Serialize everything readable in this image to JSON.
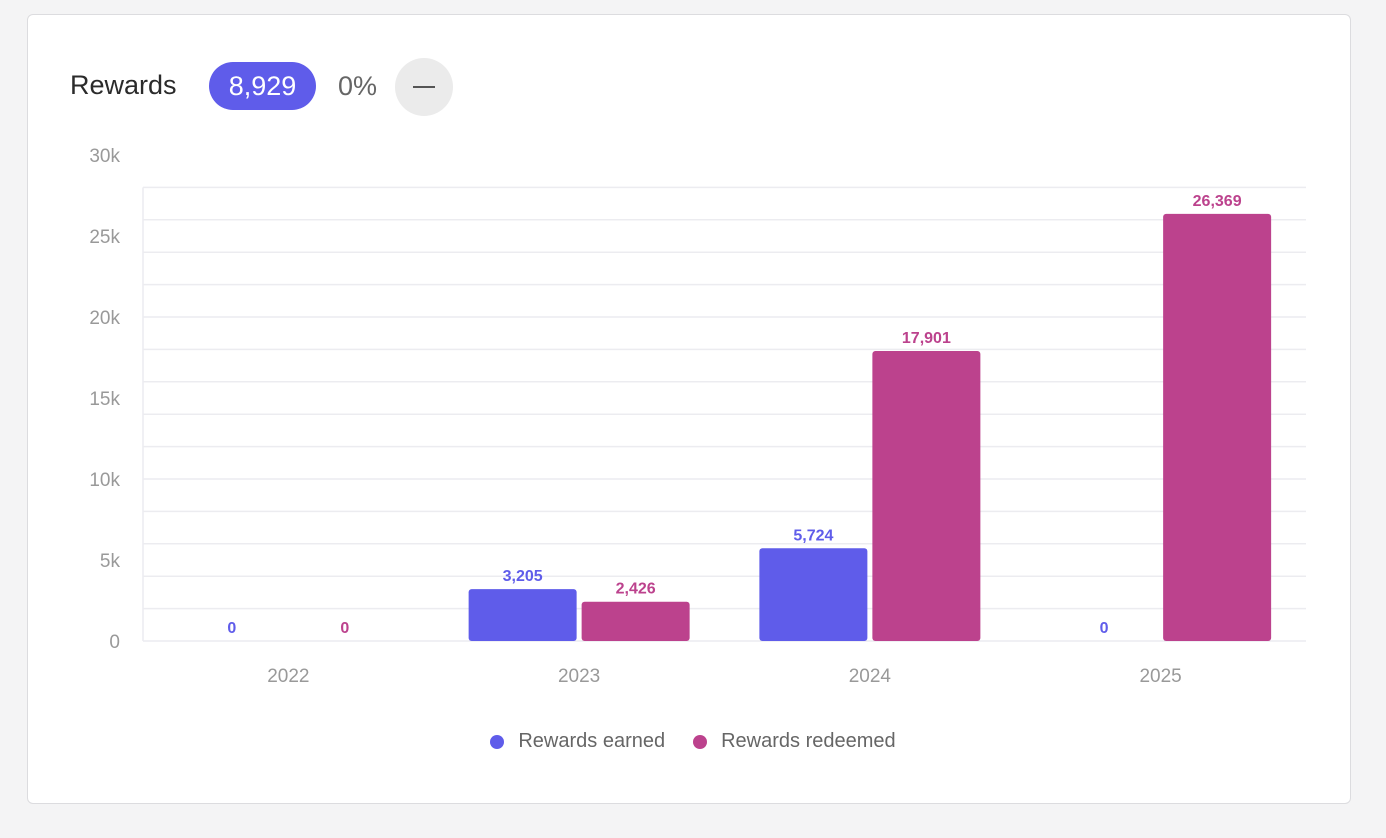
{
  "header": {
    "title": "Rewards",
    "total": "8,929",
    "change": "0%",
    "trend_icon": "dash-icon"
  },
  "colors": {
    "earned": "#5f5cea",
    "redeemed": "#bc428d"
  },
  "chart_data": {
    "type": "bar",
    "categories": [
      "2022",
      "2023",
      "2024",
      "2025"
    ],
    "series": [
      {
        "name": "Rewards earned",
        "values": [
          0,
          3205,
          5724,
          0
        ],
        "labels": [
          "0",
          "3,205",
          "5,724",
          "0"
        ]
      },
      {
        "name": "Rewards redeemed",
        "values": [
          0,
          2426,
          17901,
          26369
        ],
        "labels": [
          "0",
          "2,426",
          "17,901",
          "26,369"
        ]
      }
    ],
    "yticks": [
      0,
      5000,
      10000,
      15000,
      20000,
      25000,
      30000
    ],
    "ytick_labels": [
      "0",
      "5k",
      "10k",
      "15k",
      "20k",
      "25k",
      "30k"
    ],
    "ylim": [
      0,
      30000
    ],
    "grid_step": 2000,
    "legend": "bottom"
  }
}
